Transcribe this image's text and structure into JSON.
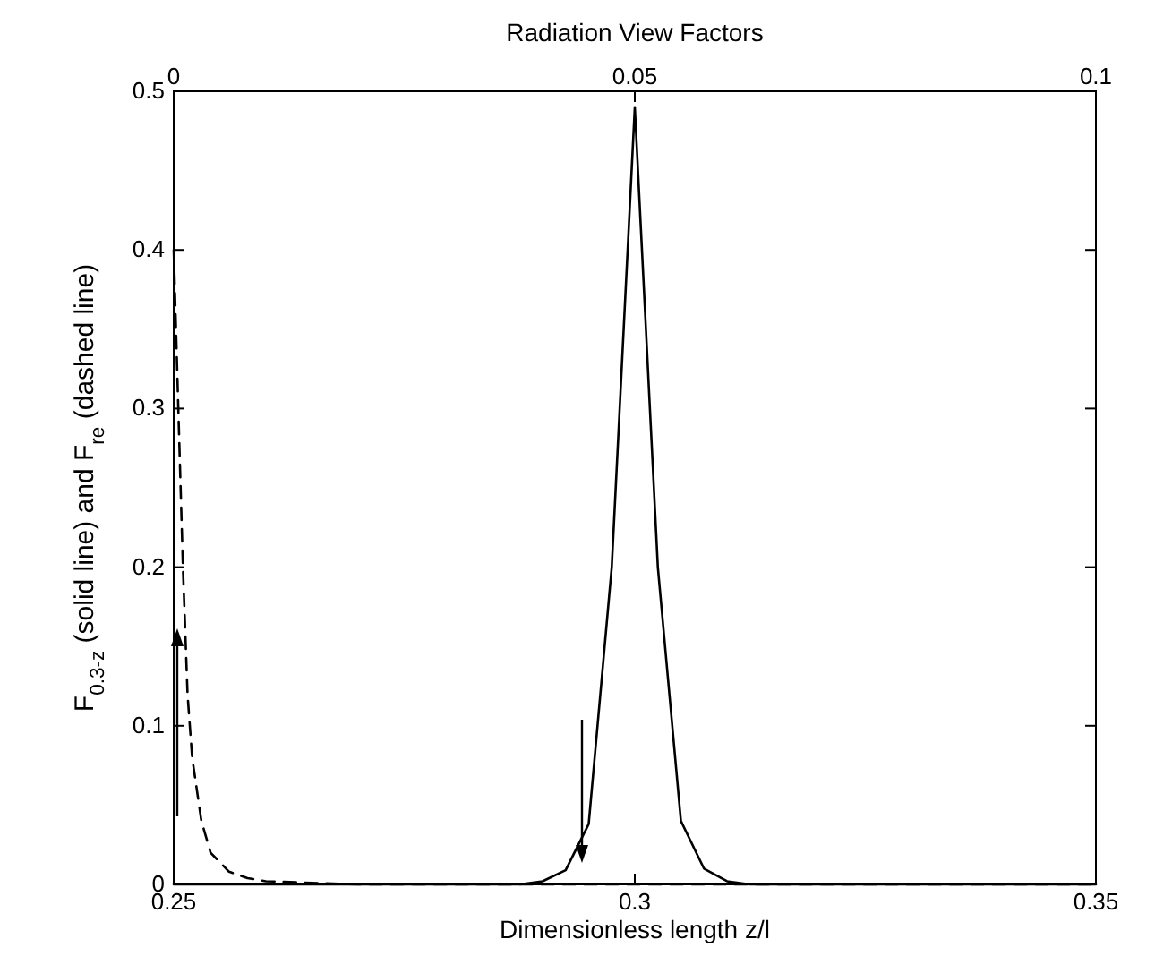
{
  "chart_data": {
    "type": "line",
    "title": "Radiation View Factors",
    "xlabel": "Dimensionless length z/l",
    "ylabel": "F$_{0.3-z}$ (solid line)  and  F$_{re}$ (dashed line)",
    "xlim": [
      0.25,
      0.35
    ],
    "xticks": [
      0.25,
      0.3,
      0.35
    ],
    "x2lim": [
      0,
      0.1
    ],
    "x2ticks": [
      0,
      0.05,
      0.1
    ],
    "ylim": [
      0,
      0.5
    ],
    "yticks": [
      0,
      0.1,
      0.2,
      0.3,
      0.4,
      0.5
    ],
    "grid": false,
    "marker": "none",
    "series": [
      {
        "color": "#000000",
        "line_style": "solid",
        "x": [
          0.25,
          0.26,
          0.27,
          0.28,
          0.285,
          0.2875,
          0.29,
          0.2925,
          0.295,
          0.2975,
          0.3,
          0.3025,
          0.305,
          0.3075,
          0.31,
          0.3125,
          0.315,
          0.32,
          0.33,
          0.34,
          0.35
        ],
        "values": [
          0,
          0,
          0,
          0,
          0,
          0,
          0.002,
          0.009,
          0.038,
          0.2,
          0.49,
          0.2,
          0.04,
          0.01,
          0.002,
          0,
          0,
          0,
          0,
          0,
          0
        ]
      },
      {
        "color": "#000000",
        "line_style": "dashed",
        "axis": "x2",
        "x": [
          0,
          0.0005,
          0.001,
          0.0015,
          0.002,
          0.003,
          0.004,
          0.006,
          0.008,
          0.01,
          0.015,
          0.02,
          0.03,
          0.05,
          0.07,
          0.1
        ],
        "values": [
          0.4,
          0.3,
          0.2,
          0.12,
          0.08,
          0.04,
          0.02,
          0.008,
          0.004,
          0.002,
          0.001,
          0,
          0,
          0,
          0,
          0
        ]
      }
    ]
  }
}
